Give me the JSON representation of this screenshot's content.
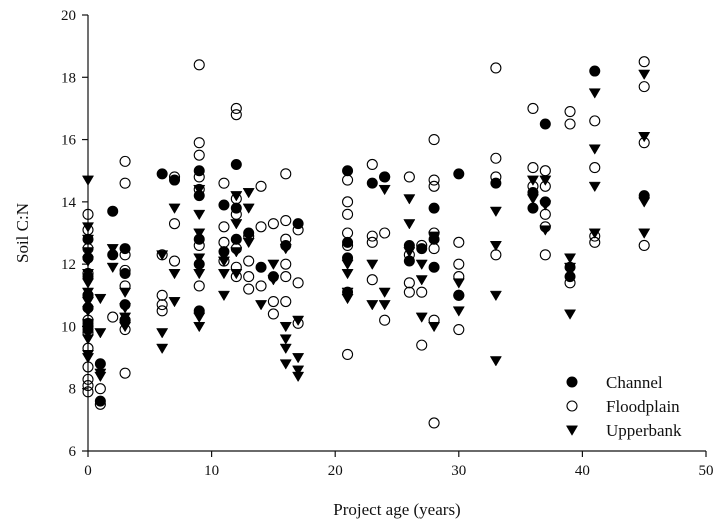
{
  "chart_data": {
    "type": "scatter",
    "title": "",
    "xlabel": "Project age (years)",
    "ylabel": "Soil C:N",
    "xlim": [
      0,
      50
    ],
    "ylim": [
      6,
      20
    ],
    "xticks": [
      0,
      10,
      20,
      30,
      40,
      50
    ],
    "yticks": [
      6,
      8,
      10,
      12,
      14,
      16,
      18,
      20
    ],
    "grid": false,
    "legend_position": "bottom-right",
    "series": [
      {
        "name": "Channel",
        "marker": "filled-circle",
        "color": "#000000",
        "points": [
          [
            0,
            12.8
          ],
          [
            0,
            12.2
          ],
          [
            0,
            11.6
          ],
          [
            0,
            11.0
          ],
          [
            0,
            10.6
          ],
          [
            0,
            10.1
          ],
          [
            0,
            9.9
          ],
          [
            1,
            8.8
          ],
          [
            1,
            7.6
          ],
          [
            2,
            13.7
          ],
          [
            2,
            12.3
          ],
          [
            3,
            12.5
          ],
          [
            3,
            11.7
          ],
          [
            3,
            10.7
          ],
          [
            3,
            10.2
          ],
          [
            6,
            14.9
          ],
          [
            7,
            14.7
          ],
          [
            9,
            15.0
          ],
          [
            9,
            14.2
          ],
          [
            9,
            12.8
          ],
          [
            9,
            12.0
          ],
          [
            9,
            10.5
          ],
          [
            11,
            13.9
          ],
          [
            11,
            12.4
          ],
          [
            12,
            15.2
          ],
          [
            12,
            13.8
          ],
          [
            12,
            12.8
          ],
          [
            13,
            13.0
          ],
          [
            14,
            11.9
          ],
          [
            15,
            11.6
          ],
          [
            16,
            12.6
          ],
          [
            17,
            13.3
          ],
          [
            21,
            15.0
          ],
          [
            21,
            12.7
          ],
          [
            21,
            12.2
          ],
          [
            21,
            11.1
          ],
          [
            23,
            14.6
          ],
          [
            24,
            14.8
          ],
          [
            26,
            12.6
          ],
          [
            26,
            12.1
          ],
          [
            27,
            12.5
          ],
          [
            28,
            13.8
          ],
          [
            28,
            12.8
          ],
          [
            28,
            11.9
          ],
          [
            30,
            14.9
          ],
          [
            30,
            11.0
          ],
          [
            33,
            14.6
          ],
          [
            36,
            14.3
          ],
          [
            36,
            13.8
          ],
          [
            37,
            16.5
          ],
          [
            37,
            14.0
          ],
          [
            39,
            11.9
          ],
          [
            39,
            11.6
          ],
          [
            41,
            18.2
          ],
          [
            45,
            14.2
          ]
        ]
      },
      {
        "name": "Floodplain",
        "marker": "open-circle",
        "color": "#000000",
        "points": [
          [
            0,
            13.6
          ],
          [
            0,
            13.1
          ],
          [
            0,
            12.5
          ],
          [
            0,
            12.2
          ],
          [
            0,
            11.7
          ],
          [
            0,
            11.0
          ],
          [
            0,
            10.6
          ],
          [
            0,
            10.2
          ],
          [
            0,
            10.0
          ],
          [
            0,
            9.8
          ],
          [
            0,
            9.3
          ],
          [
            0,
            8.7
          ],
          [
            0,
            8.3
          ],
          [
            0,
            8.1
          ],
          [
            0,
            7.9
          ],
          [
            1,
            8.0
          ],
          [
            1,
            7.5
          ],
          [
            2,
            10.3
          ],
          [
            3,
            15.3
          ],
          [
            3,
            14.6
          ],
          [
            3,
            12.3
          ],
          [
            3,
            11.8
          ],
          [
            3,
            11.3
          ],
          [
            3,
            10.2
          ],
          [
            3,
            9.9
          ],
          [
            3,
            8.5
          ],
          [
            6,
            12.3
          ],
          [
            6,
            11.0
          ],
          [
            6,
            10.7
          ],
          [
            6,
            10.5
          ],
          [
            7,
            14.8
          ],
          [
            7,
            13.3
          ],
          [
            7,
            12.1
          ],
          [
            9,
            18.4
          ],
          [
            9,
            15.9
          ],
          [
            9,
            15.5
          ],
          [
            9,
            14.8
          ],
          [
            9,
            14.4
          ],
          [
            9,
            12.6
          ],
          [
            9,
            11.3
          ],
          [
            11,
            14.6
          ],
          [
            11,
            13.2
          ],
          [
            11,
            12.7
          ],
          [
            11,
            12.1
          ],
          [
            12,
            17.0
          ],
          [
            12,
            16.8
          ],
          [
            12,
            14.1
          ],
          [
            12,
            13.6
          ],
          [
            12,
            12.5
          ],
          [
            12,
            11.9
          ],
          [
            12,
            11.6
          ],
          [
            13,
            12.9
          ],
          [
            13,
            12.1
          ],
          [
            13,
            11.6
          ],
          [
            13,
            11.2
          ],
          [
            14,
            14.5
          ],
          [
            14,
            13.2
          ],
          [
            14,
            11.3
          ],
          [
            15,
            13.3
          ],
          [
            15,
            10.8
          ],
          [
            15,
            10.4
          ],
          [
            16,
            14.9
          ],
          [
            16,
            13.4
          ],
          [
            16,
            12.8
          ],
          [
            16,
            12.0
          ],
          [
            16,
            11.6
          ],
          [
            16,
            10.8
          ],
          [
            17,
            13.1
          ],
          [
            17,
            11.4
          ],
          [
            17,
            10.1
          ],
          [
            21,
            14.7
          ],
          [
            21,
            14.0
          ],
          [
            21,
            13.6
          ],
          [
            21,
            13.0
          ],
          [
            21,
            12.6
          ],
          [
            21,
            9.1
          ],
          [
            23,
            15.2
          ],
          [
            23,
            12.9
          ],
          [
            23,
            12.7
          ],
          [
            23,
            11.5
          ],
          [
            24,
            14.8
          ],
          [
            24,
            13.0
          ],
          [
            24,
            10.2
          ],
          [
            26,
            14.8
          ],
          [
            26,
            12.3
          ],
          [
            26,
            11.4
          ],
          [
            26,
            11.1
          ],
          [
            27,
            12.6
          ],
          [
            27,
            11.1
          ],
          [
            27,
            9.4
          ],
          [
            28,
            16.0
          ],
          [
            28,
            14.7
          ],
          [
            28,
            14.5
          ],
          [
            28,
            13.0
          ],
          [
            28,
            12.5
          ],
          [
            28,
            10.2
          ],
          [
            28,
            6.9
          ],
          [
            30,
            12.7
          ],
          [
            30,
            12.0
          ],
          [
            30,
            11.6
          ],
          [
            30,
            11.0
          ],
          [
            30,
            9.9
          ],
          [
            33,
            18.3
          ],
          [
            33,
            15.4
          ],
          [
            33,
            14.8
          ],
          [
            33,
            12.3
          ],
          [
            36,
            17.0
          ],
          [
            36,
            15.1
          ],
          [
            36,
            14.5
          ],
          [
            37,
            15.0
          ],
          [
            37,
            14.5
          ],
          [
            37,
            13.6
          ],
          [
            37,
            13.2
          ],
          [
            37,
            12.3
          ],
          [
            39,
            16.9
          ],
          [
            39,
            16.5
          ],
          [
            39,
            11.4
          ],
          [
            41,
            16.6
          ],
          [
            41,
            15.1
          ],
          [
            41,
            12.9
          ],
          [
            41,
            12.7
          ],
          [
            45,
            18.5
          ],
          [
            45,
            17.7
          ],
          [
            45,
            15.9
          ],
          [
            45,
            12.6
          ]
        ]
      },
      {
        "name": "Upperbank",
        "marker": "filled-triangle-down",
        "color": "#000000",
        "points": [
          [
            0,
            14.7
          ],
          [
            0,
            13.2
          ],
          [
            0,
            12.8
          ],
          [
            0,
            12.4
          ],
          [
            0,
            12.1
          ],
          [
            0,
            11.7
          ],
          [
            0,
            11.4
          ],
          [
            0,
            11.1
          ],
          [
            0,
            10.8
          ],
          [
            0,
            10.5
          ],
          [
            0,
            10.1
          ],
          [
            0,
            9.6
          ],
          [
            0,
            9.1
          ],
          [
            0,
            9.0
          ],
          [
            1,
            10.9
          ],
          [
            1,
            9.8
          ],
          [
            1,
            8.5
          ],
          [
            1,
            8.4
          ],
          [
            2,
            12.5
          ],
          [
            2,
            11.9
          ],
          [
            3,
            11.1
          ],
          [
            3,
            10.6
          ],
          [
            3,
            10.3
          ],
          [
            3,
            10.0
          ],
          [
            6,
            12.3
          ],
          [
            6,
            9.8
          ],
          [
            6,
            9.3
          ],
          [
            7,
            13.8
          ],
          [
            7,
            11.7
          ],
          [
            7,
            10.8
          ],
          [
            9,
            14.4
          ],
          [
            9,
            13.6
          ],
          [
            9,
            13.0
          ],
          [
            9,
            12.2
          ],
          [
            9,
            11.7
          ],
          [
            9,
            10.3
          ],
          [
            9,
            10.0
          ],
          [
            11,
            12.1
          ],
          [
            11,
            11.7
          ],
          [
            11,
            11.0
          ],
          [
            12,
            14.2
          ],
          [
            12,
            13.3
          ],
          [
            12,
            12.4
          ],
          [
            12,
            11.7
          ],
          [
            13,
            14.3
          ],
          [
            13,
            13.8
          ],
          [
            13,
            12.7
          ],
          [
            14,
            10.7
          ],
          [
            15,
            12.0
          ],
          [
            15,
            11.5
          ],
          [
            16,
            12.5
          ],
          [
            16,
            10.0
          ],
          [
            16,
            9.6
          ],
          [
            16,
            9.3
          ],
          [
            16,
            8.8
          ],
          [
            17,
            10.2
          ],
          [
            17,
            9.0
          ],
          [
            17,
            8.6
          ],
          [
            17,
            8.4
          ],
          [
            21,
            12.0
          ],
          [
            21,
            11.7
          ],
          [
            21,
            11.1
          ],
          [
            21,
            10.9
          ],
          [
            23,
            12.0
          ],
          [
            23,
            10.7
          ],
          [
            24,
            14.4
          ],
          [
            24,
            11.1
          ],
          [
            24,
            10.7
          ],
          [
            26,
            14.1
          ],
          [
            26,
            13.3
          ],
          [
            26,
            12.4
          ],
          [
            27,
            12.0
          ],
          [
            27,
            11.5
          ],
          [
            27,
            10.3
          ],
          [
            28,
            12.9
          ],
          [
            28,
            10.0
          ],
          [
            30,
            11.4
          ],
          [
            30,
            10.5
          ],
          [
            33,
            13.7
          ],
          [
            33,
            12.6
          ],
          [
            33,
            11.0
          ],
          [
            33,
            8.9
          ],
          [
            36,
            14.7
          ],
          [
            36,
            14.1
          ],
          [
            37,
            14.7
          ],
          [
            37,
            13.9
          ],
          [
            37,
            13.1
          ],
          [
            39,
            12.2
          ],
          [
            39,
            11.9
          ],
          [
            39,
            10.4
          ],
          [
            41,
            17.5
          ],
          [
            41,
            15.7
          ],
          [
            41,
            14.5
          ],
          [
            41,
            13.0
          ],
          [
            45,
            18.1
          ],
          [
            45,
            16.1
          ],
          [
            45,
            14.0
          ],
          [
            45,
            13.0
          ]
        ]
      }
    ]
  }
}
